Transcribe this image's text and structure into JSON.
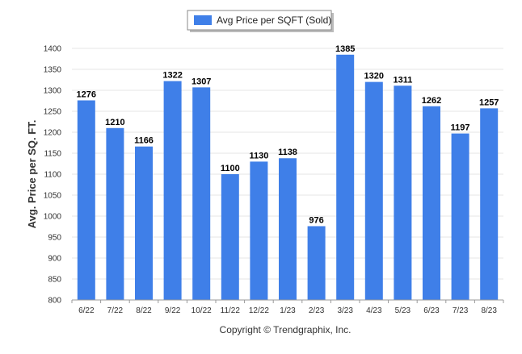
{
  "chart_data": {
    "type": "bar",
    "title": "",
    "xlabel": "",
    "ylabel": "Avg. Price per SQ. FT.",
    "categories": [
      "6/22",
      "7/22",
      "8/22",
      "9/22",
      "10/22",
      "11/22",
      "12/22",
      "1/23",
      "2/23",
      "3/23",
      "4/23",
      "5/23",
      "6/23",
      "7/23",
      "8/23"
    ],
    "series": [
      {
        "name": "Avg Price per SQFT (Sold)",
        "values": [
          1276,
          1210,
          1166,
          1322,
          1307,
          1100,
          1130,
          1138,
          976,
          1385,
          1320,
          1311,
          1262,
          1197,
          1257
        ],
        "color": "#3f7fe8"
      }
    ],
    "ylim": [
      800,
      1400
    ],
    "yticks": [
      800,
      850,
      900,
      950,
      1000,
      1050,
      1100,
      1150,
      1200,
      1250,
      1300,
      1350,
      1400
    ],
    "grid": true,
    "legend": "top-center",
    "data_labels": true
  },
  "footer": {
    "copyright": "Copyright © Trendgraphix, Inc."
  }
}
